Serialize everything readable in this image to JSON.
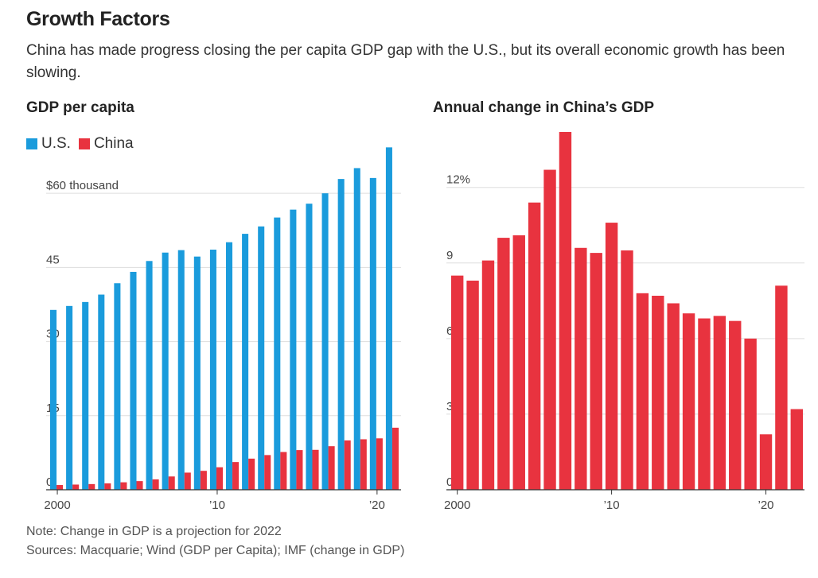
{
  "header": {
    "title": "Growth Factors",
    "subtitle": "China has made progress closing the per capita GDP gap with the U.S., but its overall economic growth has been slowing."
  },
  "footer": {
    "note": "Note: Change in GDP is a projection for 2022",
    "sources": "Sources: Macquarie; Wind (GDP per Capita); IMF (change in GDP)"
  },
  "colors": {
    "us": "#1a9bdc",
    "china": "#e8333f",
    "grid": "#dddddd",
    "axis": "#333333"
  },
  "chart_data": [
    {
      "type": "bar",
      "title": "GDP per capita",
      "legend": [
        {
          "name": "U.S.",
          "color": "#1a9bdc"
        },
        {
          "name": "China",
          "color": "#e8333f"
        }
      ],
      "legend_position": "top-left",
      "x": [
        2000,
        2001,
        2002,
        2003,
        2004,
        2005,
        2006,
        2007,
        2008,
        2009,
        2010,
        2011,
        2012,
        2013,
        2014,
        2015,
        2016,
        2017,
        2018,
        2019,
        2020,
        2021
      ],
      "series": [
        {
          "name": "U.S.",
          "values": [
            36.4,
            37.2,
            38.0,
            39.5,
            41.8,
            44.1,
            46.3,
            48.0,
            48.5,
            47.2,
            48.6,
            50.1,
            51.8,
            53.3,
            55.1,
            56.7,
            57.9,
            60.0,
            62.9,
            65.1,
            63.1,
            69.3
          ]
        },
        {
          "name": "China",
          "values": [
            0.96,
            1.05,
            1.15,
            1.29,
            1.51,
            1.75,
            2.1,
            2.69,
            3.47,
            3.83,
            4.55,
            5.61,
            6.3,
            7.02,
            7.64,
            8.03,
            8.08,
            8.82,
            9.98,
            10.22,
            10.41,
            12.56
          ]
        }
      ],
      "ylim": [
        0,
        70
      ],
      "yticks": [
        0,
        15,
        30,
        45,
        60
      ],
      "ytick_labels": [
        "0",
        "15",
        "30",
        "45",
        "$60 thousand"
      ],
      "xticks": [
        2000,
        2010,
        2020
      ],
      "xtick_labels": [
        "2000",
        "’10",
        "’20"
      ],
      "grid": true
    },
    {
      "type": "bar",
      "title": "Annual change in China’s GDP",
      "x": [
        2000,
        2001,
        2002,
        2003,
        2004,
        2005,
        2006,
        2007,
        2008,
        2009,
        2010,
        2011,
        2012,
        2013,
        2014,
        2015,
        2016,
        2017,
        2018,
        2019,
        2020,
        2021,
        2022
      ],
      "series": [
        {
          "name": "China",
          "values": [
            8.5,
            8.3,
            9.1,
            10.0,
            10.1,
            11.4,
            12.7,
            14.2,
            9.6,
            9.4,
            10.6,
            9.5,
            7.8,
            7.7,
            7.4,
            7.0,
            6.8,
            6.9,
            6.7,
            6.0,
            2.2,
            8.1,
            3.2
          ]
        }
      ],
      "ylim": [
        0,
        14.2
      ],
      "yticks": [
        0,
        3,
        6,
        9,
        12
      ],
      "ytick_labels": [
        "0",
        "3",
        "6",
        "9",
        "12%"
      ],
      "xticks": [
        2000,
        2010,
        2020
      ],
      "xtick_labels": [
        "2000",
        "’10",
        "’20"
      ],
      "grid": true
    }
  ]
}
